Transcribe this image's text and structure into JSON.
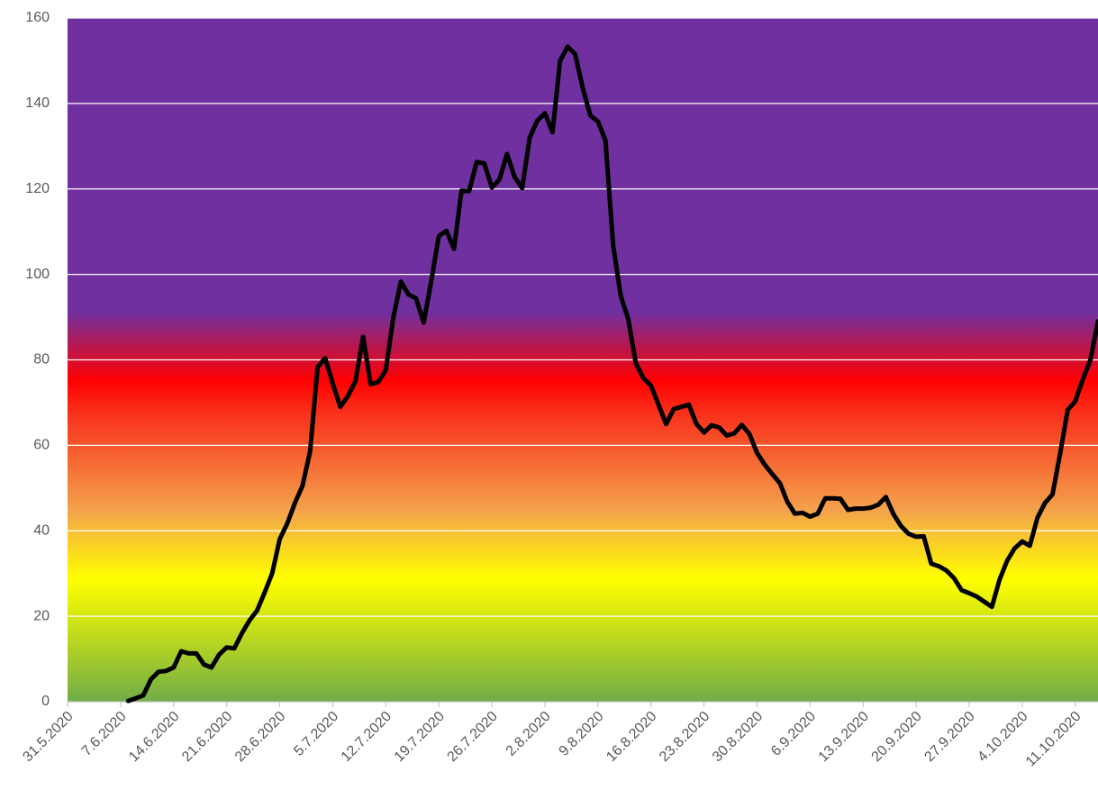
{
  "chart_data": {
    "type": "line",
    "color": "#000000",
    "x": [
      "8.6.2020",
      "9.6.2020",
      "10.6.2020",
      "11.6.2020",
      "12.6.2020",
      "13.6.2020",
      "14.6.2020",
      "15.6.2020",
      "16.6.2020",
      "17.6.2020",
      "18.6.2020",
      "19.6.2020",
      "20.6.2020",
      "21.6.2020",
      "22.6.2020",
      "23.6.2020",
      "24.6.2020",
      "25.6.2020",
      "26.6.2020",
      "27.6.2020",
      "28.6.2020",
      "29.6.2020",
      "30.6.2020",
      "1.7.2020",
      "2.7.2020",
      "3.7.2020",
      "4.7.2020",
      "5.7.2020",
      "6.7.2020",
      "7.7.2020",
      "8.7.2020",
      "9.7.2020",
      "10.7.2020",
      "11.7.2020",
      "12.7.2020",
      "13.7.2020",
      "14.7.2020",
      "15.7.2020",
      "16.7.2020",
      "17.7.2020",
      "18.7.2020",
      "19.7.2020",
      "20.7.2020",
      "21.7.2020",
      "22.7.2020",
      "23.7.2020",
      "24.7.2020",
      "25.7.2020",
      "26.7.2020",
      "27.7.2020",
      "28.7.2020",
      "29.7.2020",
      "30.7.2020",
      "31.7.2020",
      "1.8.2020",
      "2.8.2020",
      "3.8.2020",
      "4.8.2020",
      "5.8.2020",
      "6.8.2020",
      "7.8.2020",
      "8.8.2020",
      "9.8.2020",
      "10.8.2020",
      "11.8.2020",
      "12.8.2020",
      "13.8.2020",
      "14.8.2020",
      "15.8.2020",
      "16.8.2020",
      "17.8.2020",
      "18.8.2020",
      "19.8.2020",
      "20.8.2020",
      "21.8.2020",
      "22.8.2020",
      "23.8.2020",
      "24.8.2020",
      "25.8.2020",
      "26.8.2020",
      "27.8.2020",
      "28.8.2020",
      "29.8.2020",
      "30.8.2020",
      "31.8.2020",
      "1.9.2020",
      "2.9.2020",
      "3.9.2020",
      "4.9.2020",
      "5.9.2020",
      "6.9.2020",
      "7.9.2020",
      "8.9.2020",
      "9.9.2020",
      "10.9.2020",
      "11.9.2020",
      "12.9.2020",
      "13.9.2020",
      "14.9.2020",
      "15.9.2020",
      "16.9.2020",
      "17.9.2020",
      "18.9.2020",
      "19.9.2020",
      "20.9.2020",
      "21.9.2020",
      "22.9.2020",
      "23.9.2020",
      "24.9.2020",
      "25.9.2020",
      "26.9.2020",
      "27.9.2020",
      "28.9.2020",
      "29.9.2020",
      "30.9.2020",
      "1.10.2020",
      "2.10.2020",
      "3.10.2020",
      "4.10.2020",
      "5.10.2020",
      "6.10.2020",
      "7.10.2020",
      "8.10.2020",
      "9.10.2020",
      "10.10.2020",
      "11.10.2020",
      "12.10.2020",
      "13.10.2020",
      "14.10.2020"
    ],
    "values": [
      0.2,
      0.8,
      1.5,
      5.2,
      7,
      7.2,
      8,
      11.8,
      11.3,
      11.3,
      8.7,
      8,
      11,
      12.7,
      12.5,
      16,
      19,
      21.3,
      25.5,
      30,
      38,
      41.7,
      46.5,
      50.5,
      58.5,
      78.3,
      80.4,
      74.5,
      69,
      71.5,
      75,
      85.4,
      74.3,
      74.8,
      77.6,
      90,
      98.3,
      95.3,
      94.4,
      88.7,
      98.5,
      109,
      110.2,
      106,
      119.6,
      119.5,
      126.3,
      126,
      120.3,
      122.2,
      128.2,
      122.8,
      120.2,
      132,
      136,
      137.7,
      133.3,
      150,
      153.3,
      151.5,
      143.6,
      137.2,
      135.8,
      131.3,
      107,
      95,
      89.5,
      79.2,
      75.7,
      74,
      69.5,
      65,
      68.5,
      69,
      69.5,
      65,
      63,
      64.7,
      64.2,
      62.3,
      62.8,
      64.8,
      62.6,
      58.2,
      55.5,
      53.3,
      51.2,
      46.8,
      44,
      44.2,
      43.3,
      44,
      47.6,
      47.6,
      47.5,
      44.9,
      45.2,
      45.2,
      45.4,
      46.1,
      47.9,
      43.9,
      41.1,
      39.3,
      38.6,
      38.7,
      32.3,
      31.7,
      30.7,
      28.9,
      26.1,
      25.4,
      24.6,
      23.4,
      22.2,
      28.5,
      33,
      35.9,
      37.5,
      36.5,
      43,
      46.5,
      48.5,
      58,
      68.3,
      70.3,
      75.5,
      80,
      89
    ],
    "xlim": [
      "31.5.2020",
      "14.10.2020"
    ],
    "xticks": [
      "31.5.2020",
      "7.6.2020",
      "14.6.2020",
      "21.6.2020",
      "28.6.2020",
      "5.7.2020",
      "12.7.2020",
      "19.7.2020",
      "26.7.2020",
      "2.8.2020",
      "9.8.2020",
      "16.8.2020",
      "23.8.2020",
      "30.8.2020",
      "6.9.2020",
      "13.9.2020",
      "20.9.2020",
      "27.9.2020",
      "4.10.2020",
      "11.10.2020"
    ],
    "ylim": [
      0,
      160
    ],
    "yticks": [
      0,
      20,
      40,
      60,
      80,
      100,
      120,
      140,
      160
    ],
    "grid": true
  }
}
